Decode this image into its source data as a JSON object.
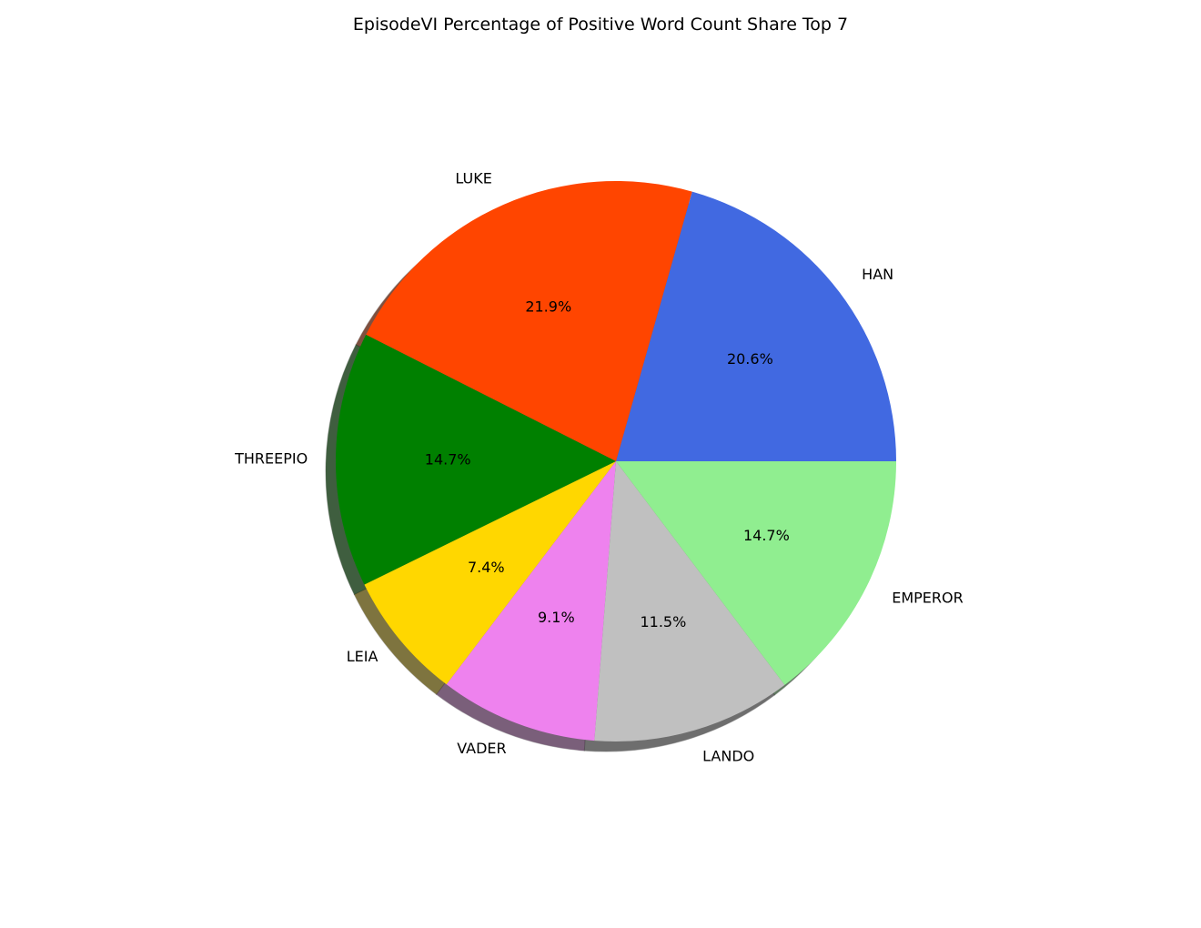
{
  "chart_data": {
    "type": "pie",
    "title": "EpisodeVI Percentage of Positive Word Count Share Top 7",
    "slices": [
      {
        "label": "HAN",
        "value": 20.6,
        "pct_label": "20.6%",
        "color": "#4169e1"
      },
      {
        "label": "LUKE",
        "value": 21.9,
        "pct_label": "21.9%",
        "color": "#ff4500"
      },
      {
        "label": "THREEPIO",
        "value": 14.7,
        "pct_label": "14.7%",
        "color": "#008000"
      },
      {
        "label": "LEIA",
        "value": 7.4,
        "pct_label": "7.4%",
        "color": "#ffd700"
      },
      {
        "label": "VADER",
        "value": 9.1,
        "pct_label": "9.1%",
        "color": "#ee82ee"
      },
      {
        "label": "LANDO",
        "value": 11.5,
        "pct_label": "11.5%",
        "color": "#c0c0c0"
      },
      {
        "label": "EMPEROR",
        "value": 14.7,
        "pct_label": "14.7%",
        "color": "#90ee90"
      }
    ],
    "start_angle_deg": 0,
    "direction": "counterclockwise",
    "shadow": true
  }
}
